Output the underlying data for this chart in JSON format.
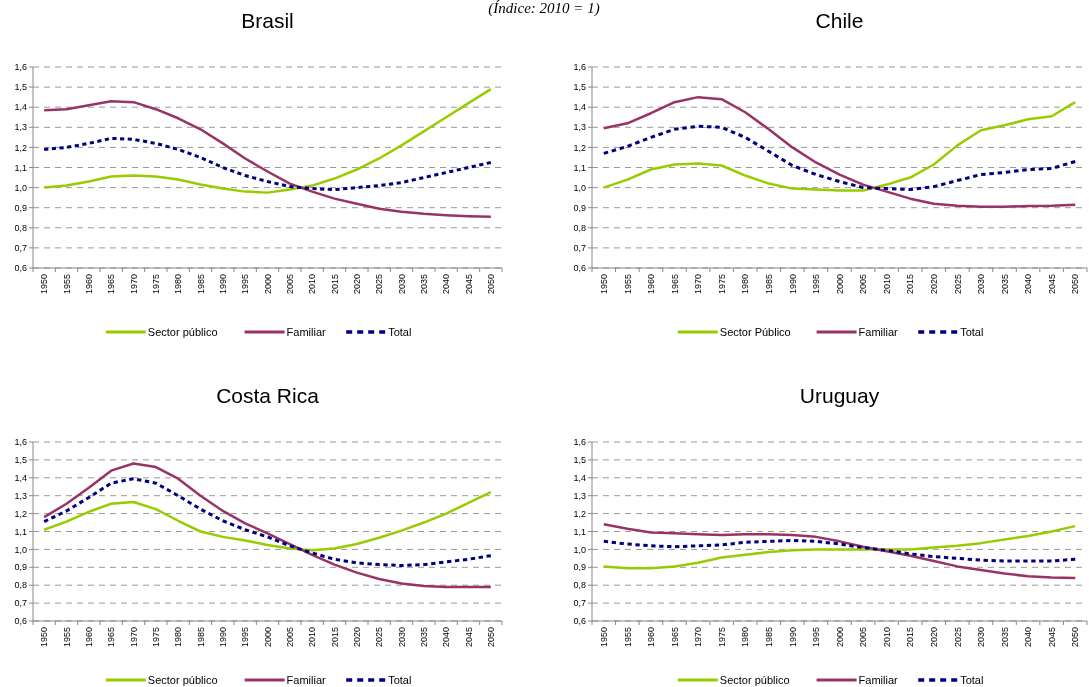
{
  "chart_data": [
    {
      "type": "line",
      "title": "Brasil",
      "subtitle": "(Índice: 2010 = 1)",
      "categories": [
        "1950",
        "1955",
        "1960",
        "1965",
        "1970",
        "1975",
        "1980",
        "1985",
        "1990",
        "1995",
        "2000",
        "2005",
        "2010",
        "2015",
        "2020",
        "2025",
        "2030",
        "2035",
        "2040",
        "2045",
        "2050"
      ],
      "ylim": [
        0.6,
        1.6
      ],
      "yticks": [
        {
          "value": 0.6,
          "label": "0,6"
        },
        {
          "value": 0.7,
          "label": "0,7"
        },
        {
          "value": 0.8,
          "label": "0,8"
        },
        {
          "value": 0.9,
          "label": "0,9"
        },
        {
          "value": 1.0,
          "label": "1,0"
        },
        {
          "value": 1.1,
          "label": "1,1"
        },
        {
          "value": 1.2,
          "label": "1,2"
        },
        {
          "value": 1.3,
          "label": "1,3"
        },
        {
          "value": 1.4,
          "label": "1,4"
        },
        {
          "value": 1.5,
          "label": "1,5"
        },
        {
          "value": 1.6,
          "label": "1,6"
        }
      ],
      "grid": "y",
      "legend": "bottom",
      "series": [
        {
          "name": "Sector público",
          "color": "#99cc00",
          "values": [
            1.0,
            1.01,
            1.03,
            1.055,
            1.06,
            1.055,
            1.04,
            1.015,
            0.995,
            0.98,
            0.975,
            0.99,
            1.01,
            1.045,
            1.09,
            1.145,
            1.21,
            1.28,
            1.35,
            1.42,
            1.49
          ]
        },
        {
          "name": "Familiar",
          "color": "#993366",
          "values": [
            1.385,
            1.39,
            1.41,
            1.43,
            1.425,
            1.39,
            1.345,
            1.29,
            1.22,
            1.145,
            1.08,
            1.02,
            0.98,
            0.945,
            0.92,
            0.895,
            0.88,
            0.87,
            0.863,
            0.858,
            0.855
          ]
        },
        {
          "name": "Total",
          "color": "#000080",
          "line_style": "dashed",
          "values": [
            1.19,
            1.2,
            1.22,
            1.245,
            1.24,
            1.22,
            1.19,
            1.15,
            1.1,
            1.06,
            1.03,
            1.005,
            0.995,
            0.99,
            1.0,
            1.01,
            1.025,
            1.05,
            1.075,
            1.1,
            1.125
          ]
        }
      ]
    },
    {
      "type": "line",
      "title": "Chile",
      "categories": [
        "1950",
        "1955",
        "1960",
        "1965",
        "1970",
        "1975",
        "1980",
        "1985",
        "1990",
        "1995",
        "2000",
        "2005",
        "2010",
        "2015",
        "2020",
        "2025",
        "2030",
        "2035",
        "2040",
        "2045",
        "2050"
      ],
      "ylim": [
        0.6,
        1.6
      ],
      "yticks": [
        {
          "value": 0.6,
          "label": "0,6"
        },
        {
          "value": 0.7,
          "label": "0,7"
        },
        {
          "value": 0.8,
          "label": "0,8"
        },
        {
          "value": 0.9,
          "label": "0,9"
        },
        {
          "value": 1.0,
          "label": "1,0"
        },
        {
          "value": 1.1,
          "label": "1,1"
        },
        {
          "value": 1.2,
          "label": "1,2"
        },
        {
          "value": 1.3,
          "label": "1,3"
        },
        {
          "value": 1.4,
          "label": "1,4"
        },
        {
          "value": 1.5,
          "label": "1,5"
        },
        {
          "value": 1.6,
          "label": "1,6"
        }
      ],
      "grid": "y",
      "legend": "bottom",
      "series": [
        {
          "name": "Sector Público",
          "color": "#99cc00",
          "values": [
            1.0,
            1.04,
            1.09,
            1.115,
            1.12,
            1.11,
            1.06,
            1.02,
            0.995,
            0.99,
            0.985,
            0.985,
            1.015,
            1.05,
            1.115,
            1.21,
            1.285,
            1.31,
            1.34,
            1.355,
            1.425
          ]
        },
        {
          "name": "Familiar",
          "color": "#993366",
          "values": [
            1.295,
            1.32,
            1.37,
            1.425,
            1.45,
            1.44,
            1.375,
            1.29,
            1.2,
            1.125,
            1.065,
            1.015,
            0.98,
            0.945,
            0.92,
            0.91,
            0.905,
            0.905,
            0.908,
            0.91,
            0.915
          ]
        },
        {
          "name": "Total",
          "color": "#000080",
          "line_style": "dashed",
          "values": [
            1.17,
            1.205,
            1.25,
            1.29,
            1.305,
            1.3,
            1.25,
            1.18,
            1.11,
            1.065,
            1.03,
            1.0,
            0.995,
            0.99,
            1.005,
            1.035,
            1.065,
            1.075,
            1.09,
            1.095,
            1.13
          ]
        }
      ]
    },
    {
      "type": "line",
      "title": "Costa Rica",
      "categories": [
        "1950",
        "1955",
        "1960",
        "1965",
        "1970",
        "1975",
        "1980",
        "1985",
        "1990",
        "1995",
        "2000",
        "2005",
        "2010",
        "2015",
        "2020",
        "2025",
        "2030",
        "2035",
        "2040",
        "2045",
        "2050"
      ],
      "ylim": [
        0.6,
        1.6
      ],
      "yticks": [
        {
          "value": 0.6,
          "label": "0,6"
        },
        {
          "value": 0.7,
          "label": "0,7"
        },
        {
          "value": 0.8,
          "label": "0,8"
        },
        {
          "value": 0.9,
          "label": "0,9"
        },
        {
          "value": 1.0,
          "label": "1,0"
        },
        {
          "value": 1.1,
          "label": "1,1"
        },
        {
          "value": 1.2,
          "label": "1,2"
        },
        {
          "value": 1.3,
          "label": "1,3"
        },
        {
          "value": 1.4,
          "label": "1,4"
        },
        {
          "value": 1.5,
          "label": "1,5"
        },
        {
          "value": 1.6,
          "label": "1,6"
        }
      ],
      "grid": "y",
      "legend": "bottom",
      "series": [
        {
          "name": "Sector público",
          "color": "#99cc00",
          "values": [
            1.11,
            1.155,
            1.21,
            1.255,
            1.265,
            1.225,
            1.16,
            1.1,
            1.07,
            1.05,
            1.025,
            1.005,
            0.995,
            1.005,
            1.03,
            1.065,
            1.105,
            1.15,
            1.2,
            1.26,
            1.32
          ]
        },
        {
          "name": "Familiar",
          "color": "#993366",
          "values": [
            1.18,
            1.255,
            1.345,
            1.44,
            1.48,
            1.46,
            1.395,
            1.3,
            1.215,
            1.145,
            1.09,
            1.03,
            0.97,
            0.915,
            0.87,
            0.835,
            0.81,
            0.795,
            0.79,
            0.79,
            0.79
          ]
        },
        {
          "name": "Total",
          "color": "#000080",
          "line_style": "dashed",
          "values": [
            1.155,
            1.215,
            1.29,
            1.37,
            1.395,
            1.37,
            1.3,
            1.225,
            1.16,
            1.11,
            1.07,
            1.02,
            0.98,
            0.945,
            0.925,
            0.915,
            0.91,
            0.915,
            0.93,
            0.945,
            0.965
          ]
        }
      ]
    },
    {
      "type": "line",
      "title": "Uruguay",
      "categories": [
        "1950",
        "1955",
        "1960",
        "1965",
        "1970",
        "1975",
        "1980",
        "1985",
        "1990",
        "1995",
        "2000",
        "2005",
        "2010",
        "2015",
        "2020",
        "2025",
        "2030",
        "2035",
        "2040",
        "2045",
        "2050"
      ],
      "ylim": [
        0.6,
        1.6
      ],
      "yticks": [
        {
          "value": 0.6,
          "label": "0,6"
        },
        {
          "value": 0.7,
          "label": "0,7"
        },
        {
          "value": 0.8,
          "label": "0,8"
        },
        {
          "value": 0.9,
          "label": "0,9"
        },
        {
          "value": 1.0,
          "label": "1,0"
        },
        {
          "value": 1.1,
          "label": "1,1"
        },
        {
          "value": 1.2,
          "label": "1,2"
        },
        {
          "value": 1.3,
          "label": "1,3"
        },
        {
          "value": 1.4,
          "label": "1,4"
        },
        {
          "value": 1.5,
          "label": "1,5"
        },
        {
          "value": 1.6,
          "label": "1,6"
        }
      ],
      "grid": "y",
      "legend": "bottom",
      "series": [
        {
          "name": "Sector público",
          "color": "#99cc00",
          "values": [
            0.905,
            0.895,
            0.895,
            0.905,
            0.925,
            0.955,
            0.97,
            0.985,
            0.995,
            1.0,
            1.0,
            1.0,
            1.0,
            1.0,
            1.01,
            1.02,
            1.035,
            1.055,
            1.075,
            1.1,
            1.13
          ]
        },
        {
          "name": "Familiar",
          "color": "#993366",
          "values": [
            1.14,
            1.115,
            1.095,
            1.09,
            1.085,
            1.08,
            1.085,
            1.085,
            1.08,
            1.07,
            1.045,
            1.015,
            0.99,
            0.965,
            0.935,
            0.905,
            0.885,
            0.865,
            0.85,
            0.843,
            0.84
          ]
        },
        {
          "name": "Total",
          "color": "#000080",
          "line_style": "dashed",
          "values": [
            1.045,
            1.03,
            1.02,
            1.015,
            1.02,
            1.025,
            1.04,
            1.045,
            1.05,
            1.045,
            1.03,
            1.01,
            0.995,
            0.975,
            0.96,
            0.95,
            0.94,
            0.935,
            0.935,
            0.935,
            0.945
          ]
        }
      ]
    }
  ]
}
